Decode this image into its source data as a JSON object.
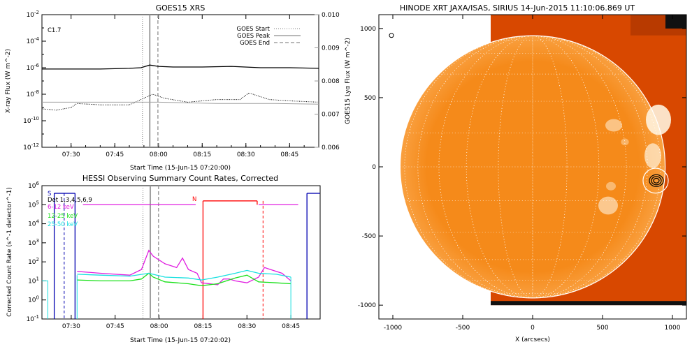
{
  "chart_data": [
    {
      "type": "line",
      "title": "GOES15 XRS",
      "xlabel": "Start Time (15-Jun-15 07:20:00)",
      "ylabel": "X-ray Flux (W m^-2)",
      "ylabel_right": "GOES15 Lyα Flux (W m^-2)",
      "annotation": "C1.7",
      "x_ticks": [
        "07:30",
        "07:45",
        "08:00",
        "08:15",
        "08:30",
        "08:45"
      ],
      "x_tick_minutes": [
        10,
        25,
        40,
        55,
        70,
        85
      ],
      "x_range_minutes": [
        0,
        95
      ],
      "y_scale": "log",
      "y_ticks": [
        "10^-2",
        "10^-4",
        "10^-6",
        "10^-8",
        "10^-10",
        "10^-12"
      ],
      "ylim_exp": [
        -12,
        -2
      ],
      "y_right_ticks": [
        "0.010",
        "0.009",
        "0.008",
        "0.007",
        "0.006"
      ],
      "y_right_range": [
        0.006,
        0.01
      ],
      "legend": [
        {
          "label": "GOES Start",
          "style": "dotted",
          "color": "#808080"
        },
        {
          "label": "GOES Peak",
          "style": "solid",
          "color": "#a0a0a0"
        },
        {
          "label": "GOES End",
          "style": "dashed",
          "color": "#a0a0a0"
        }
      ],
      "markers_minutes": {
        "start": 34.5,
        "peak": 37.0,
        "end": 39.8
      },
      "series": [
        {
          "name": "long",
          "color": "#000000",
          "style": "solid",
          "x": [
            0,
            10,
            20,
            30,
            34,
            37,
            40,
            45,
            55,
            65,
            75,
            85,
            95
          ],
          "log10_y": [
            -6.1,
            -6.1,
            -6.1,
            -6.05,
            -6.0,
            -5.8,
            -5.9,
            -5.95,
            -5.95,
            -5.9,
            -6.0,
            -6.0,
            -6.05
          ]
        },
        {
          "name": "short",
          "color": "#000000",
          "style": "dotted",
          "x": [
            0,
            5,
            10,
            12,
            20,
            30,
            35,
            38,
            42,
            50,
            60,
            68,
            71,
            78,
            85,
            95
          ],
          "log10_y": [
            -9.1,
            -9.2,
            -9.0,
            -8.7,
            -8.8,
            -8.8,
            -8.3,
            -8.0,
            -8.3,
            -8.6,
            -8.4,
            -8.4,
            -7.9,
            -8.4,
            -8.5,
            -8.6
          ]
        },
        {
          "name": "lya",
          "color": "#a0a0a0",
          "style": "solid",
          "x": [
            0,
            20,
            40,
            60,
            80,
            95
          ],
          "log10_y": [
            -8.6,
            -8.6,
            -8.6,
            -8.7,
            -8.7,
            -8.75
          ]
        }
      ]
    },
    {
      "type": "line",
      "title": "HESSI Observing Summary Count Rates, Corrected",
      "xlabel": "Start Time (15-Jun-15 07:20:02)",
      "ylabel": "Corrected Count Rate (s^-1 detector^-1)",
      "x_ticks": [
        "07:30",
        "07:45",
        "08:00",
        "08:15",
        "08:30",
        "08:45"
      ],
      "x_tick_minutes": [
        10,
        25,
        40,
        55,
        70,
        85
      ],
      "x_range_minutes": [
        0,
        95
      ],
      "y_scale": "log",
      "y_ticks": [
        "10^6",
        "10^5",
        "10^4",
        "10^3",
        "10^2",
        "10^1",
        "10^0",
        "10^-1"
      ],
      "ylim_exp": [
        -1,
        6
      ],
      "legend": [
        {
          "label": "Det 1,3,4,5,6,9",
          "color": "#000000"
        },
        {
          "label": "6-12 keV",
          "color": "#e01ee0"
        },
        {
          "label": "12-25 keV",
          "color": "#18e018"
        },
        {
          "label": "25-50 keV",
          "color": "#18e0e0"
        }
      ],
      "flags": [
        {
          "label": "S",
          "color": "#0000b0"
        },
        {
          "label": "N",
          "color": "#ff0000"
        }
      ],
      "markers_minutes": {
        "start": 34.5,
        "peak": 37.0,
        "end": 39.8
      },
      "series": [
        {
          "name": "6-12 keV",
          "color": "#e01ee0",
          "x": [
            12,
            20,
            30,
            34,
            36.5,
            38,
            42,
            46,
            48,
            50,
            53,
            54.5,
            60,
            62,
            64,
            66,
            70,
            74,
            76,
            82,
            85
          ],
          "log10_y": [
            1.5,
            1.4,
            1.3,
            1.6,
            2.6,
            2.3,
            1.9,
            1.7,
            2.2,
            1.6,
            1.4,
            0.9,
            0.8,
            1.1,
            1.1,
            1.0,
            0.9,
            1.2,
            1.7,
            1.4,
            1.0
          ]
        },
        {
          "name": "12-25 keV",
          "color": "#18e018",
          "x": [
            12,
            20,
            30,
            34,
            36.5,
            38,
            42,
            50,
            54.5,
            60,
            66,
            70,
            74,
            80,
            85
          ],
          "log10_y": [
            1.05,
            1.0,
            1.0,
            1.1,
            1.4,
            1.2,
            0.95,
            0.85,
            0.75,
            0.85,
            1.15,
            1.3,
            0.95,
            0.9,
            0.85
          ]
        },
        {
          "name": "25-50 keV",
          "color": "#18e0e0",
          "x": [
            12,
            20,
            30,
            36.5,
            42,
            50,
            54.5,
            60,
            66,
            70,
            74,
            80,
            85
          ],
          "log10_y": [
            1.35,
            1.3,
            1.25,
            1.4,
            1.2,
            1.15,
            1.05,
            1.2,
            1.4,
            1.55,
            1.4,
            1.35,
            1.2
          ]
        }
      ]
    },
    {
      "type": "heatmap",
      "title": "HINODE XRT JAXA/ISAS, SIRIUS 14-Jun-2015 11:10:06.869 UT",
      "xlabel": "X (arcsecs)",
      "ylabel": "",
      "xlim": [
        -1100,
        1100
      ],
      "ylim": [
        -1100,
        1100
      ],
      "x_ticks": [
        "-1000",
        "-500",
        "0",
        "500",
        "1000"
      ],
      "x_tick_values": [
        -1000,
        -500,
        0,
        500,
        1000
      ],
      "y_ticks": [
        "1000",
        "500",
        "0",
        "-500",
        "-1000"
      ],
      "y_tick_values": [
        1000,
        500,
        0,
        -500,
        -1000
      ],
      "image_extent_arcsec": {
        "x": [
          -300,
          1100
        ],
        "y": [
          -1000,
          1100
        ]
      },
      "solar_radius_arcsec": 948,
      "region_circle_arcsec": {
        "x": 880,
        "y": -100,
        "r": 90
      },
      "map_colors": {
        "base": "#f27a12",
        "bright": "#fff2dc",
        "outside": "#d84800"
      }
    }
  ]
}
